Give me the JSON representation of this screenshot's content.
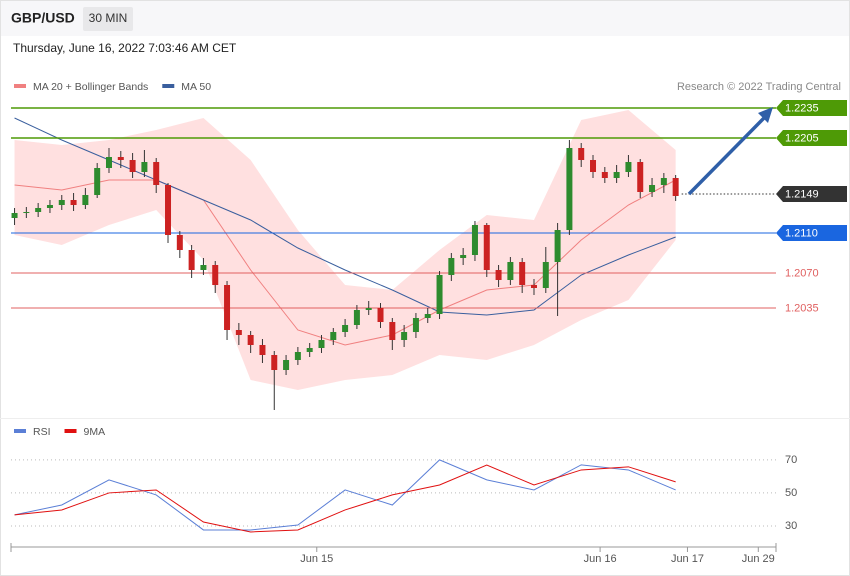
{
  "header": {
    "symbol": "GBP/USD",
    "timeframe": "30 MIN",
    "timestamp": "Thursday, June 16, 2022 7:03:46 AM CET",
    "credit": "Research © 2022 Trading Central"
  },
  "chart_data": [
    {
      "type": "candlestick",
      "up_color": "#2e8b2e",
      "down_color": "#cc2222",
      "open": [
        1.2125,
        1.213,
        1.2131,
        1.2135,
        1.2138,
        1.2143,
        1.2138,
        1.2148,
        1.2175,
        1.2186,
        1.2183,
        1.2171,
        1.2181,
        1.2158,
        1.2108,
        1.2093,
        1.2073,
        1.2078,
        1.2058,
        1.2013,
        1.2008,
        1.1998,
        1.1988,
        1.1973,
        1.1983,
        1.1991,
        1.1995,
        1.2003,
        1.2011,
        1.2018,
        1.2033,
        1.2035,
        1.2021,
        1.2003,
        1.2011,
        1.2025,
        1.2029,
        1.2068,
        1.2085,
        1.2088,
        1.2118,
        1.2073,
        1.2063,
        1.2081,
        1.2058,
        1.2055,
        1.2081,
        1.2113,
        1.2195,
        1.2183,
        1.2171,
        1.2165,
        1.2171,
        1.2181,
        1.2151,
        1.2158,
        1.2165
      ],
      "high": [
        1.2135,
        1.2136,
        1.214,
        1.2143,
        1.2148,
        1.215,
        1.2155,
        1.218,
        1.2195,
        1.2192,
        1.219,
        1.2193,
        1.2185,
        1.216,
        1.2112,
        1.2098,
        1.2085,
        1.2082,
        1.2062,
        1.202,
        1.2012,
        1.2004,
        1.1992,
        1.1988,
        1.1996,
        1.2,
        1.2008,
        1.2015,
        1.2024,
        1.2038,
        1.2042,
        1.204,
        1.2025,
        1.2018,
        1.203,
        1.2035,
        1.2072,
        1.209,
        1.2095,
        1.2122,
        1.212,
        1.2078,
        1.2086,
        1.2085,
        1.2064,
        1.2096,
        1.212,
        1.2203,
        1.22,
        1.2188,
        1.2176,
        1.2178,
        1.2188,
        1.2184,
        1.2165,
        1.217,
        1.2168
      ],
      "low": [
        1.2118,
        1.2125,
        1.2126,
        1.213,
        1.2133,
        1.2132,
        1.2134,
        1.2145,
        1.217,
        1.2175,
        1.2165,
        1.2166,
        1.215,
        1.21,
        1.2085,
        1.2065,
        1.2068,
        1.205,
        1.2003,
        1.1998,
        1.199,
        1.198,
        1.1933,
        1.1968,
        1.1978,
        1.1986,
        1.199,
        1.1998,
        1.2006,
        1.2014,
        1.2028,
        1.2015,
        1.1993,
        1.1996,
        1.2005,
        1.202,
        1.2024,
        1.2062,
        1.2078,
        1.2082,
        1.2066,
        1.2056,
        1.2058,
        1.205,
        1.2048,
        1.205,
        1.2027,
        1.2108,
        1.2176,
        1.2165,
        1.216,
        1.216,
        1.2166,
        1.2145,
        1.2146,
        1.215,
        1.2142
      ],
      "close": [
        1.213,
        1.2131,
        1.2135,
        1.2138,
        1.2143,
        1.2138,
        1.2148,
        1.2175,
        1.2186,
        1.2183,
        1.2171,
        1.2181,
        1.2158,
        1.2108,
        1.2093,
        1.2073,
        1.2078,
        1.2058,
        1.2013,
        1.2008,
        1.1998,
        1.1988,
        1.1973,
        1.1983,
        1.1991,
        1.1995,
        1.2003,
        1.2011,
        1.2018,
        1.2033,
        1.2035,
        1.2021,
        1.2003,
        1.2011,
        1.2025,
        1.2029,
        1.2068,
        1.2085,
        1.2088,
        1.2118,
        1.2073,
        1.2063,
        1.2081,
        1.2058,
        1.2055,
        1.2081,
        1.2113,
        1.2195,
        1.2183,
        1.2171,
        1.2165,
        1.2171,
        1.2181,
        1.2151,
        1.2158,
        1.2165,
        1.2147
      ],
      "line_x": [
        0,
        4,
        8,
        12,
        16,
        20,
        24,
        28,
        32,
        36,
        40,
        44,
        48,
        52,
        56
      ],
      "series": [
        {
          "name": "MA 20 + Bollinger Bands",
          "color": "#f08080",
          "band_color": "#ffe0e0",
          "values": [
            1.2158,
            1.2153,
            1.2163,
            1.2163,
            1.2143,
            1.2073,
            1.2013,
            1.1998,
            1.2008,
            1.2033,
            1.2053,
            1.2058,
            1.2103,
            1.2138,
            1.2163
          ],
          "upper": [
            1.2203,
            1.2198,
            1.2203,
            1.2213,
            1.2225,
            1.2183,
            1.2113,
            1.2058,
            1.2053,
            1.2093,
            1.2128,
            1.2123,
            1.2223,
            1.2233,
            1.2193
          ],
          "lower": [
            1.2108,
            1.2098,
            1.2118,
            1.2133,
            1.2083,
            1.1963,
            1.1953,
            1.1963,
            1.1968,
            1.1988,
            1.1983,
            1.1998,
            1.2023,
            1.2043,
            1.2103
          ]
        },
        {
          "name": "MA 50",
          "color": "#3a5f9e",
          "values": [
            1.2225,
            1.2203,
            1.2183,
            1.2163,
            1.2143,
            1.2123,
            1.2095,
            1.2073,
            1.2053,
            1.2031,
            1.2028,
            1.2033,
            1.2068,
            1.2088,
            1.2106
          ]
        }
      ],
      "levels": [
        {
          "value": 1.2235,
          "label": "1.2235",
          "color": "#4e9a06",
          "style": "solid",
          "boxed": true
        },
        {
          "value": 1.2205,
          "label": "1.2205",
          "color": "#4e9a06",
          "style": "solid",
          "boxed": true
        },
        {
          "value": 1.2149,
          "label": "1.2149",
          "color": "#333333",
          "style": "dotted",
          "boxed": true
        },
        {
          "value": 1.211,
          "label": "1.2110",
          "color": "#1a66e0",
          "style": "solid",
          "boxed": true
        },
        {
          "value": 1.207,
          "label": "1.2070",
          "color": "#e06060",
          "style": "solid",
          "boxed": false
        },
        {
          "value": 1.2035,
          "label": "1.2035",
          "color": "#e06060",
          "style": "solid",
          "boxed": false
        }
      ],
      "xlim": [
        -0.3,
        64.5
      ],
      "ylim": [
        1.1928,
        1.2248
      ]
    },
    {
      "type": "line",
      "x": [
        0,
        4,
        8,
        12,
        16,
        20,
        24,
        28,
        32,
        36,
        40,
        44,
        48,
        52,
        56
      ],
      "series": [
        {
          "name": "RSI",
          "color": "#5b7fd6",
          "values": [
            36.7,
            42.7,
            57.9,
            48.8,
            27.6,
            27.6,
            30.6,
            51.8,
            42.7,
            70,
            57.9,
            51.8,
            67,
            63.9,
            51.8
          ]
        },
        {
          "name": "9MA",
          "color": "#e01010",
          "values": [
            36.7,
            39.7,
            50,
            51.8,
            32.4,
            26.4,
            27.6,
            39.7,
            48.8,
            54.8,
            66.9,
            54.8,
            63.9,
            65.8,
            56.7
          ]
        }
      ],
      "xlim": [
        -0.3,
        64.5
      ],
      "ylim": [
        18.5,
        79
      ],
      "yticks": [
        30,
        50,
        70
      ],
      "xticks": [
        {
          "value": 25.6,
          "label": "Jun 15"
        },
        {
          "value": 49.6,
          "label": "Jun 16"
        },
        {
          "value": 57,
          "label": "Jun 17"
        },
        {
          "value": 63,
          "label": "Jun 29"
        }
      ]
    }
  ]
}
